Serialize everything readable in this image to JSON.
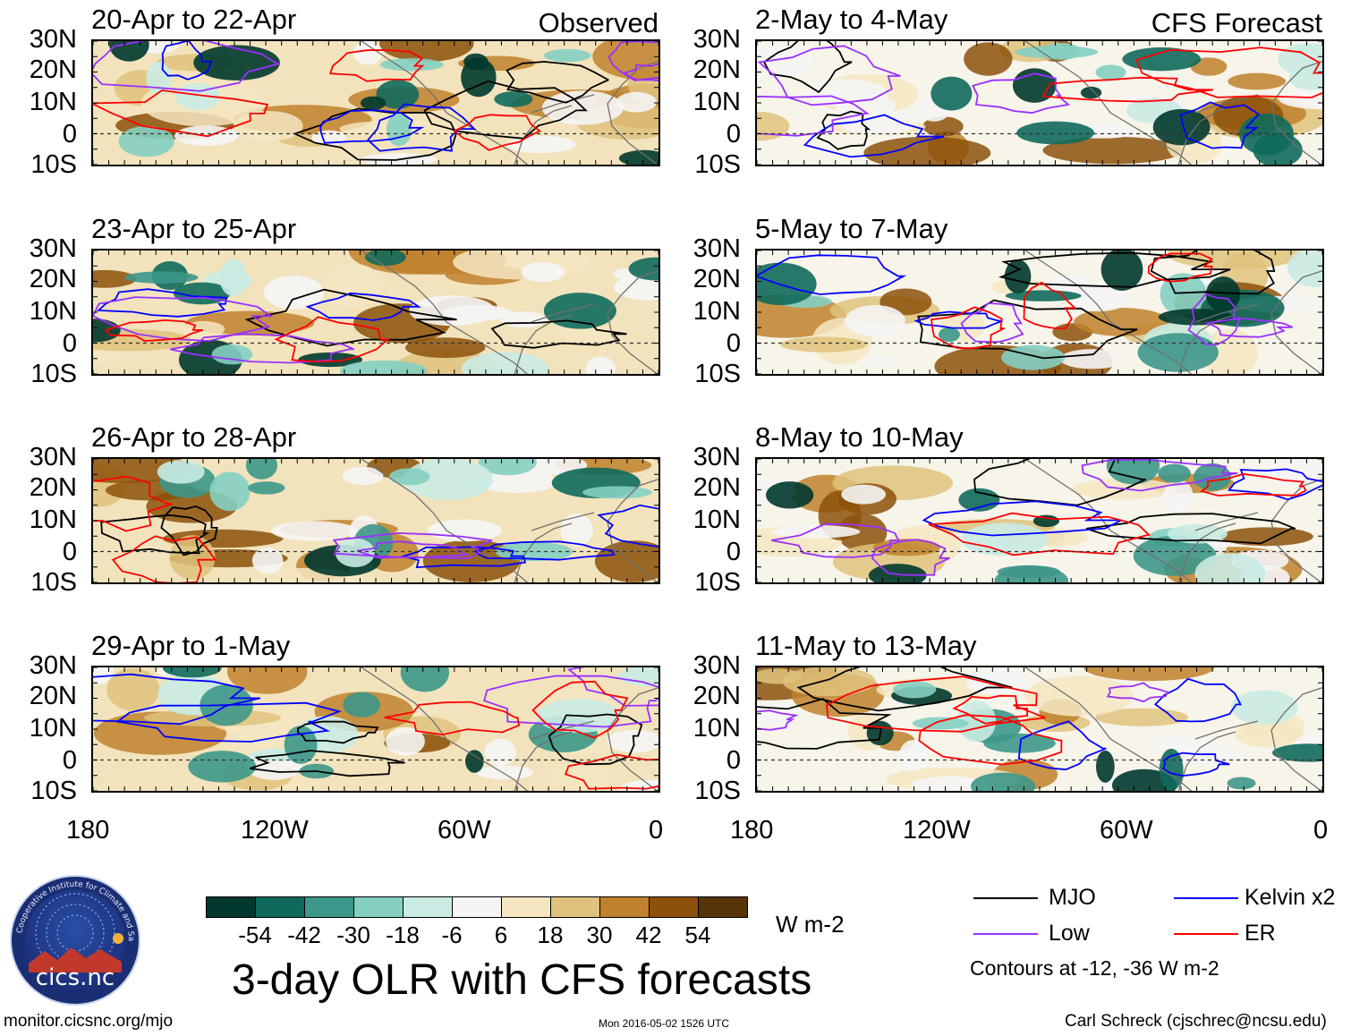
{
  "panels": [
    {
      "title": "20-Apr to 22-Apr",
      "corner_label": "Observed",
      "kind": "observed"
    },
    {
      "title": "2-May to 4-May",
      "corner_label": "CFS Forecast",
      "kind": "forecast"
    },
    {
      "title": "23-Apr to 25-Apr",
      "corner_label": "",
      "kind": "observed"
    },
    {
      "title": "5-May to 7-May",
      "corner_label": "",
      "kind": "forecast"
    },
    {
      "title": "26-Apr to 28-Apr",
      "corner_label": "",
      "kind": "observed"
    },
    {
      "title": "8-May to 10-May",
      "corner_label": "",
      "kind": "forecast"
    },
    {
      "title": "29-Apr to 1-May",
      "corner_label": "",
      "kind": "observed"
    },
    {
      "title": "11-May to 13-May",
      "corner_label": "",
      "kind": "forecast"
    }
  ],
  "lat_labels": [
    "30N",
    "20N",
    "10N",
    "0",
    "10S"
  ],
  "lon_labels": [
    "180",
    "120W",
    "60W",
    "0"
  ],
  "colorbar": {
    "units": "W m-2",
    "ticks": [
      "-54",
      "-42",
      "-30",
      "-18",
      "-6",
      "6",
      "18",
      "30",
      "42",
      "54"
    ],
    "colors": [
      "#00382e",
      "#0f6a5c",
      "#3d978a",
      "#84cfc2",
      "#c9ebe3",
      "#f5f5f5",
      "#f5e6c2",
      "#dfc27d",
      "#bf812d",
      "#8c510a",
      "#573508"
    ]
  },
  "main_title": "3-day OLR with CFS forecasts",
  "legend": {
    "items": [
      {
        "label": "MJO",
        "color": "#000000"
      },
      {
        "label": "Kelvin x2",
        "color": "#0000ff"
      },
      {
        "label": "Low",
        "color": "#9b30ff"
      },
      {
        "label": "ER",
        "color": "#ff0000"
      }
    ],
    "note": "Contours at -12, -36 W m-2"
  },
  "logo": {
    "ring_text": "Cooperative Institute for Climate and Satellites",
    "name": "cics.nc"
  },
  "footer": {
    "left": "monitor.cicsnc.org/mjo",
    "center": "Mon 2016-05-02 1526 UTC",
    "right": "Carl Schreck (cjschrec@ncsu.edu)"
  }
}
